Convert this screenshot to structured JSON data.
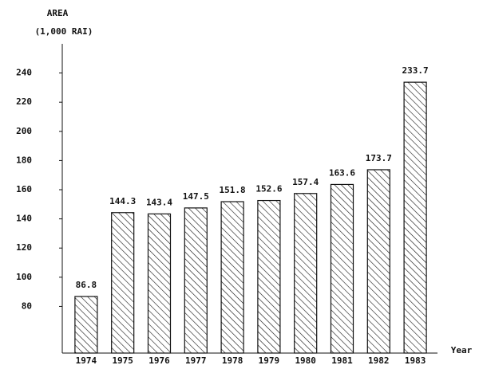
{
  "chart_data": {
    "type": "bar",
    "y_label": "AREA",
    "y_unit": "(1,000 RAI)",
    "x_label": "Year",
    "categories": [
      "1974",
      "1975",
      "1976",
      "1977",
      "1978",
      "1979",
      "1980",
      "1981",
      "1982",
      "1983"
    ],
    "values": [
      86.8,
      144.3,
      143.4,
      147.5,
      151.8,
      152.6,
      157.4,
      163.6,
      173.7,
      233.7
    ],
    "color": "#111111",
    "ylim": [
      48,
      260
    ],
    "yticks": [
      80,
      100,
      120,
      140,
      160,
      180,
      200,
      220,
      240
    ]
  }
}
